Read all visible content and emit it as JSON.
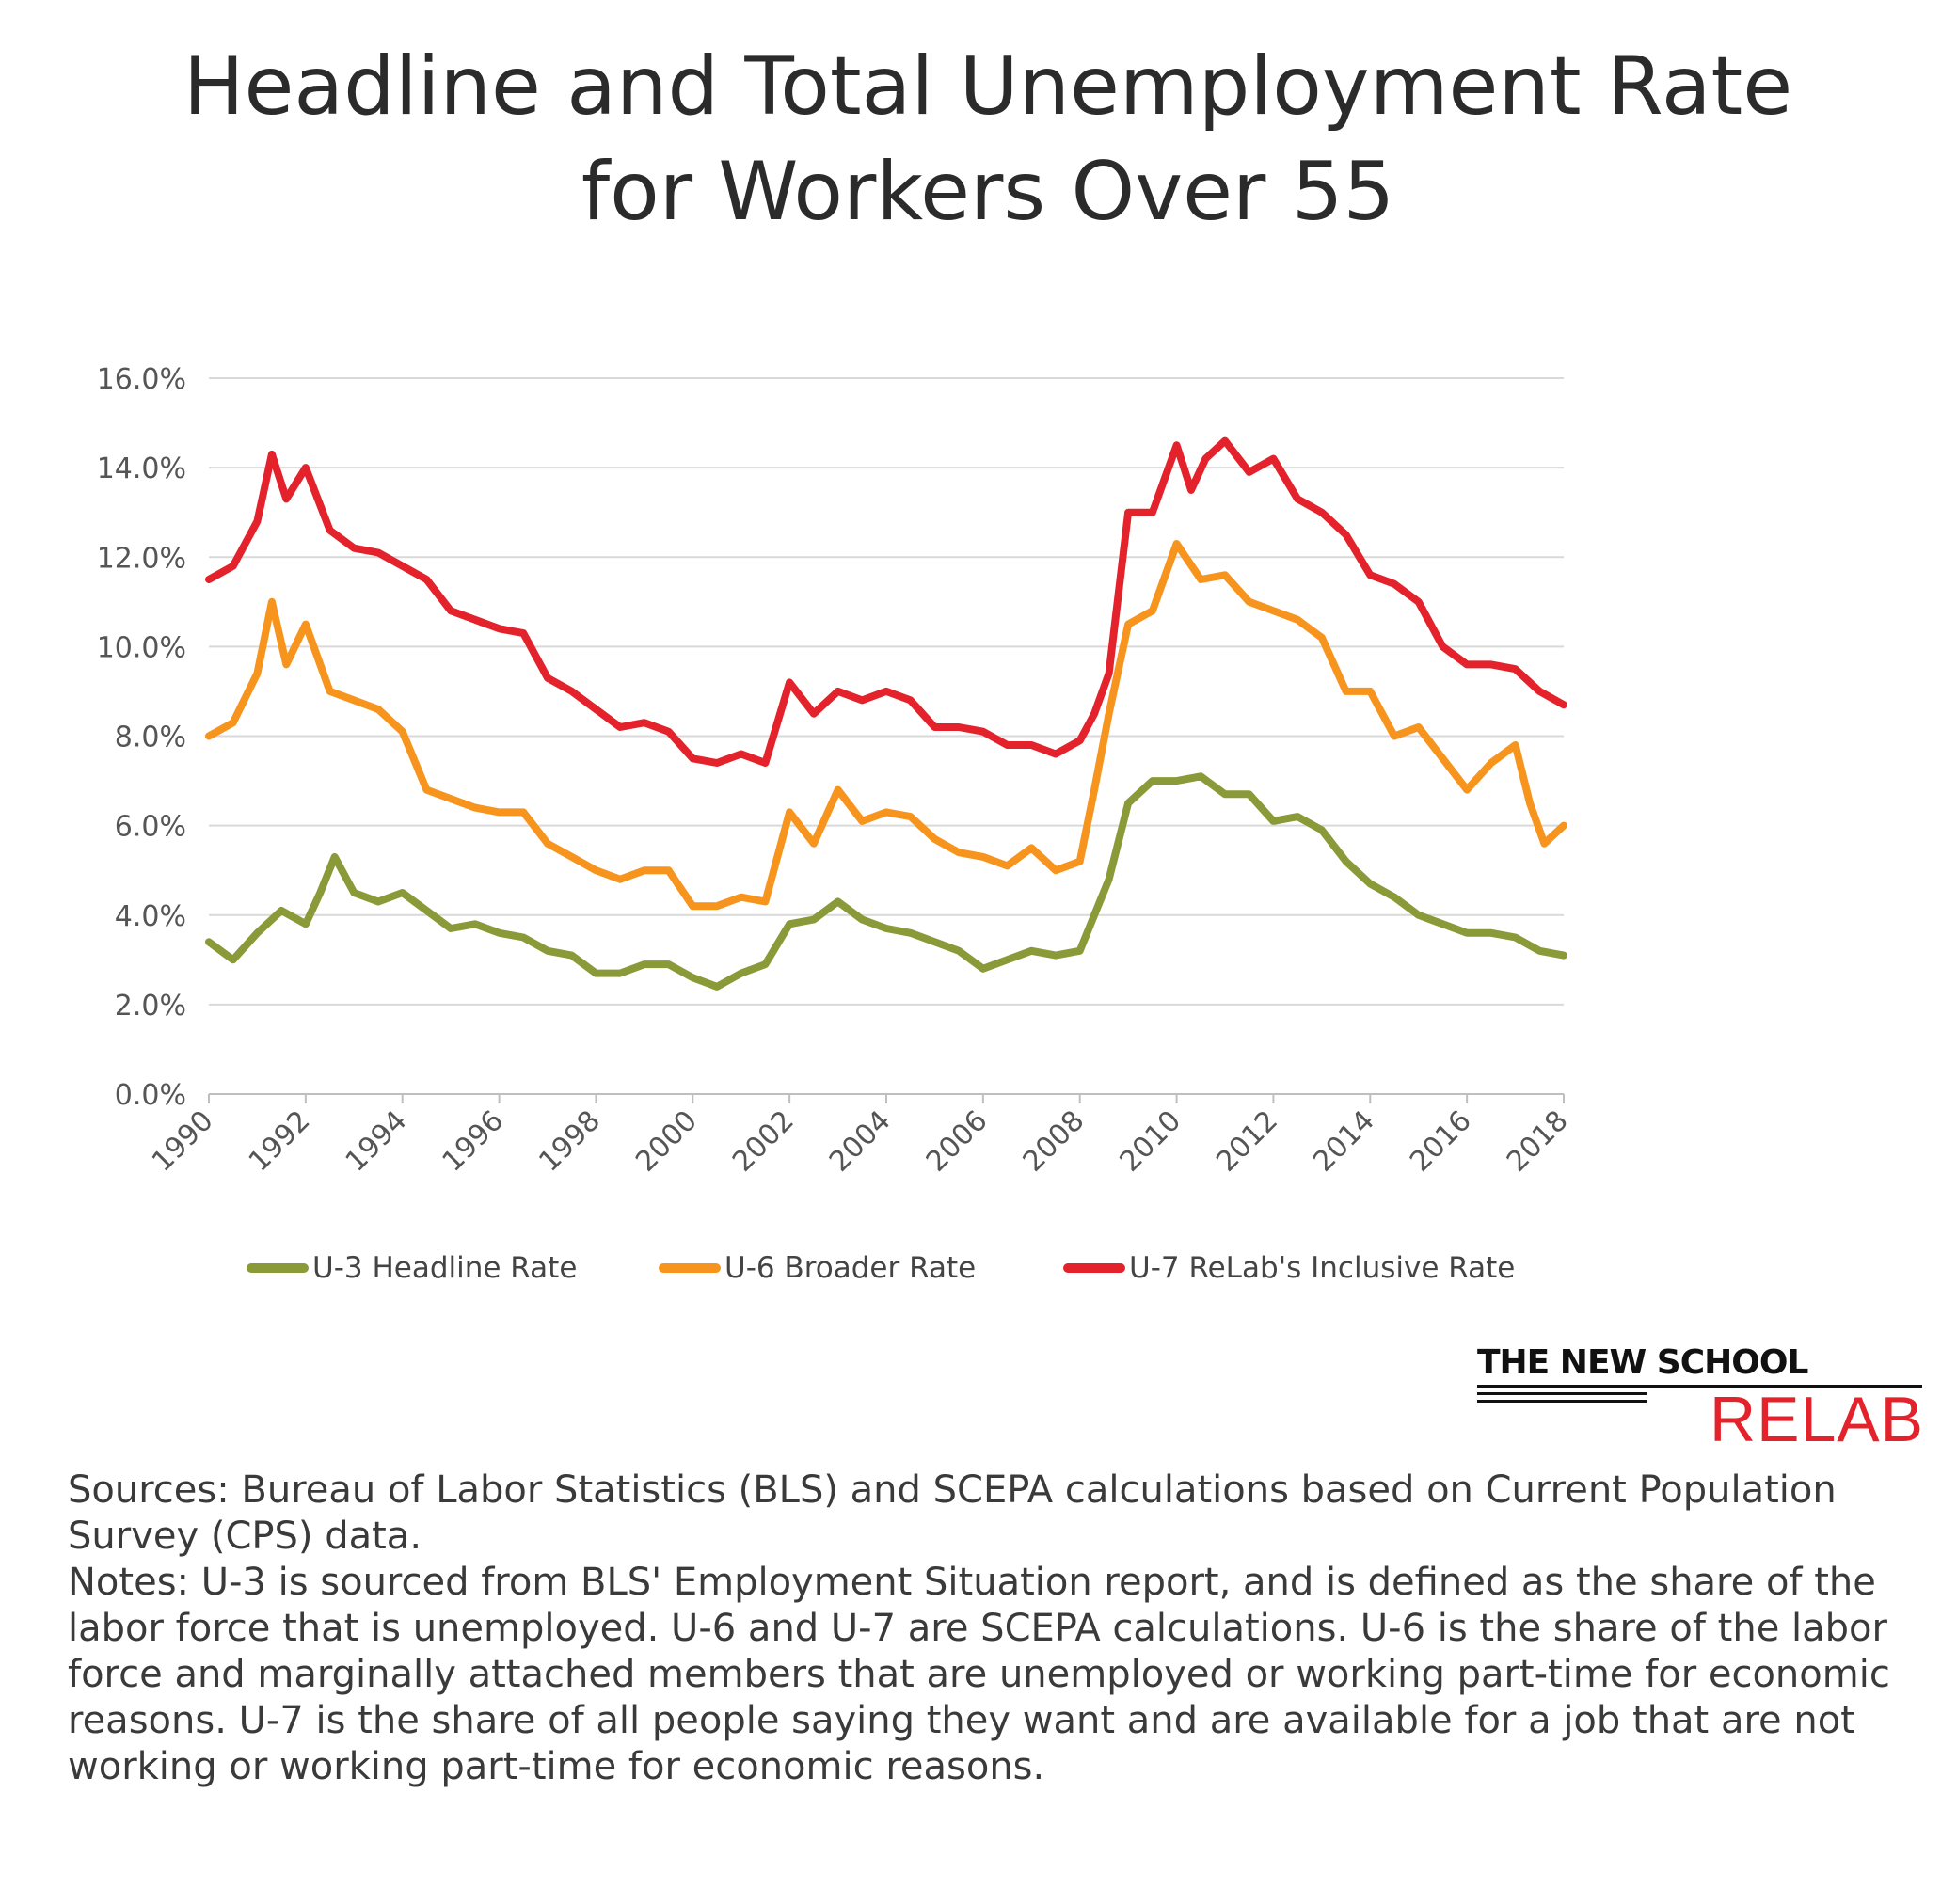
{
  "title_line1": "Headline and Total Unemployment Rate",
  "title_line2": "for Workers Over 55",
  "chart_data": {
    "type": "line",
    "title": "Headline and Total Unemployment Rate for Workers Over 55",
    "xlabel": "",
    "ylabel": "",
    "xlim": [
      1990,
      2018
    ],
    "ylim": [
      0,
      16
    ],
    "y_ticks": [
      "0.0%",
      "2.0%",
      "4.0%",
      "6.0%",
      "8.0%",
      "10.0%",
      "12.0%",
      "14.0%",
      "16.0%"
    ],
    "y_tick_values": [
      0,
      2,
      4,
      6,
      8,
      10,
      12,
      14,
      16
    ],
    "x_ticks": [
      "1990",
      "1992",
      "1994",
      "1996",
      "1998",
      "2000",
      "2002",
      "2004",
      "2006",
      "2008",
      "2010",
      "2012",
      "2014",
      "2016",
      "2018"
    ],
    "x_tick_values": [
      1990,
      1992,
      1994,
      1996,
      1998,
      2000,
      2002,
      2004,
      2006,
      2008,
      2010,
      2012,
      2014,
      2016,
      2018
    ],
    "grid": true,
    "legend_position": "bottom",
    "series": [
      {
        "name": "U-3 Headline Rate",
        "color": "#8a9a38",
        "x": [
          1990,
          1990.5,
          1991,
          1991.5,
          1992,
          1992.3,
          1992.6,
          1993,
          1993.5,
          1994,
          1994.5,
          1995,
          1995.5,
          1996,
          1996.5,
          1997,
          1997.5,
          1998,
          1998.5,
          1999,
          1999.5,
          2000,
          2000.5,
          2001,
          2001.5,
          2002,
          2002.5,
          2003,
          2003.5,
          2004,
          2004.5,
          2005,
          2005.5,
          2006,
          2006.5,
          2007,
          2007.5,
          2008,
          2008.3,
          2008.6,
          2009,
          2009.5,
          2010,
          2010.5,
          2011,
          2011.5,
          2012,
          2012.5,
          2013,
          2013.5,
          2014,
          2014.5,
          2015,
          2015.5,
          2016,
          2016.5,
          2017,
          2017.5,
          2018
        ],
        "values": [
          3.4,
          3.0,
          3.6,
          4.1,
          3.8,
          4.5,
          5.3,
          4.5,
          4.3,
          4.5,
          4.1,
          3.7,
          3.8,
          3.6,
          3.5,
          3.2,
          3.1,
          2.7,
          2.7,
          2.9,
          2.9,
          2.6,
          2.4,
          2.7,
          2.9,
          3.8,
          3.9,
          4.3,
          3.9,
          3.7,
          3.6,
          3.4,
          3.2,
          2.8,
          3.0,
          3.2,
          3.1,
          3.2,
          4.0,
          4.8,
          6.5,
          7.0,
          7.0,
          7.1,
          6.7,
          6.7,
          6.1,
          6.2,
          5.9,
          5.2,
          4.7,
          4.4,
          4.0,
          3.8,
          3.6,
          3.6,
          3.5,
          3.2,
          3.1
        ]
      },
      {
        "name": "U-6 Broader Rate",
        "color": "#f7941d",
        "x": [
          1990,
          1990.5,
          1991,
          1991.3,
          1991.6,
          1992,
          1992.5,
          1993,
          1993.5,
          1994,
          1994.5,
          1995,
          1995.5,
          1996,
          1996.5,
          1997,
          1997.5,
          1998,
          1998.5,
          1999,
          1999.5,
          2000,
          2000.5,
          2001,
          2001.5,
          2002,
          2002.5,
          2003,
          2003.5,
          2004,
          2004.5,
          2005,
          2005.5,
          2006,
          2006.5,
          2007,
          2007.5,
          2008,
          2008.3,
          2008.6,
          2009,
          2009.5,
          2010,
          2010.5,
          2011,
          2011.5,
          2012,
          2012.5,
          2013,
          2013.5,
          2014,
          2014.5,
          2015,
          2015.5,
          2016,
          2016.5,
          2017,
          2017.3,
          2017.6,
          2018
        ],
        "values": [
          8.0,
          8.3,
          9.4,
          11.0,
          9.6,
          10.5,
          9.0,
          8.8,
          8.6,
          8.1,
          6.8,
          6.6,
          6.4,
          6.3,
          6.3,
          5.6,
          5.3,
          5.0,
          4.8,
          5.0,
          5.0,
          4.2,
          4.2,
          4.4,
          4.3,
          6.3,
          5.6,
          6.8,
          6.1,
          6.3,
          6.2,
          5.7,
          5.4,
          5.3,
          5.1,
          5.5,
          5.0,
          5.2,
          6.8,
          8.5,
          10.5,
          10.8,
          12.3,
          11.5,
          11.6,
          11.0,
          10.8,
          10.6,
          10.2,
          9.0,
          9.0,
          8.0,
          8.2,
          7.5,
          6.8,
          7.4,
          7.8,
          6.5,
          5.6,
          6.0
        ]
      },
      {
        "name": "U-7 ReLab's Inclusive Rate",
        "color": "#e4222b",
        "x": [
          1990,
          1990.5,
          1991,
          1991.3,
          1991.6,
          1992,
          1992.5,
          1993,
          1993.5,
          1994,
          1994.5,
          1995,
          1995.5,
          1996,
          1996.5,
          1997,
          1997.5,
          1998,
          1998.5,
          1999,
          1999.5,
          2000,
          2000.5,
          2001,
          2001.5,
          2002,
          2002.5,
          2003,
          2003.5,
          2004,
          2004.5,
          2005,
          2005.5,
          2006,
          2006.5,
          2007,
          2007.5,
          2008,
          2008.3,
          2008.6,
          2009,
          2009.5,
          2010,
          2010.3,
          2010.6,
          2011,
          2011.5,
          2012,
          2012.5,
          2013,
          2013.5,
          2014,
          2014.5,
          2015,
          2015.5,
          2016,
          2016.5,
          2017,
          2017.5,
          2018
        ],
        "values": [
          11.5,
          11.8,
          12.8,
          14.3,
          13.3,
          14.0,
          12.6,
          12.2,
          12.1,
          11.8,
          11.5,
          10.8,
          10.6,
          10.4,
          10.3,
          9.3,
          9.0,
          8.6,
          8.2,
          8.3,
          8.1,
          7.5,
          7.4,
          7.6,
          7.4,
          9.2,
          8.5,
          9.0,
          8.8,
          9.0,
          8.8,
          8.2,
          8.2,
          8.1,
          7.8,
          7.8,
          7.6,
          7.9,
          8.5,
          9.4,
          13.0,
          13.0,
          14.5,
          13.5,
          14.2,
          14.6,
          13.9,
          14.2,
          13.3,
          13.0,
          12.5,
          11.6,
          11.4,
          11.0,
          10.0,
          9.6,
          9.6,
          9.5,
          9.0,
          8.7
        ]
      }
    ]
  },
  "legend": [
    {
      "label": "U-3 Headline Rate",
      "color": "#8a9a38"
    },
    {
      "label": "U-6 Broader Rate",
      "color": "#f7941d"
    },
    {
      "label": "U-7 ReLab's Inclusive Rate",
      "color": "#e4222b"
    }
  ],
  "logo": {
    "top_text": "THE NEW SCHOOL",
    "bottom_text": "RELAB"
  },
  "notes": {
    "sources": "Sources: Bureau of Labor Statistics (BLS) and SCEPA calculations based on Current Population Survey (CPS) data.",
    "notes": "Notes: U-3 is sourced from BLS' Employment Situation report, and is defined as the share of the labor force that is unemployed. U-6 and U-7 are SCEPA calculations. U-6 is the share of the labor force and marginally attached members that are unemployed or working part-time for economic reasons. U-7 is the share of all people saying they want and are available for a job that are not working or working part-time for economic reasons."
  }
}
